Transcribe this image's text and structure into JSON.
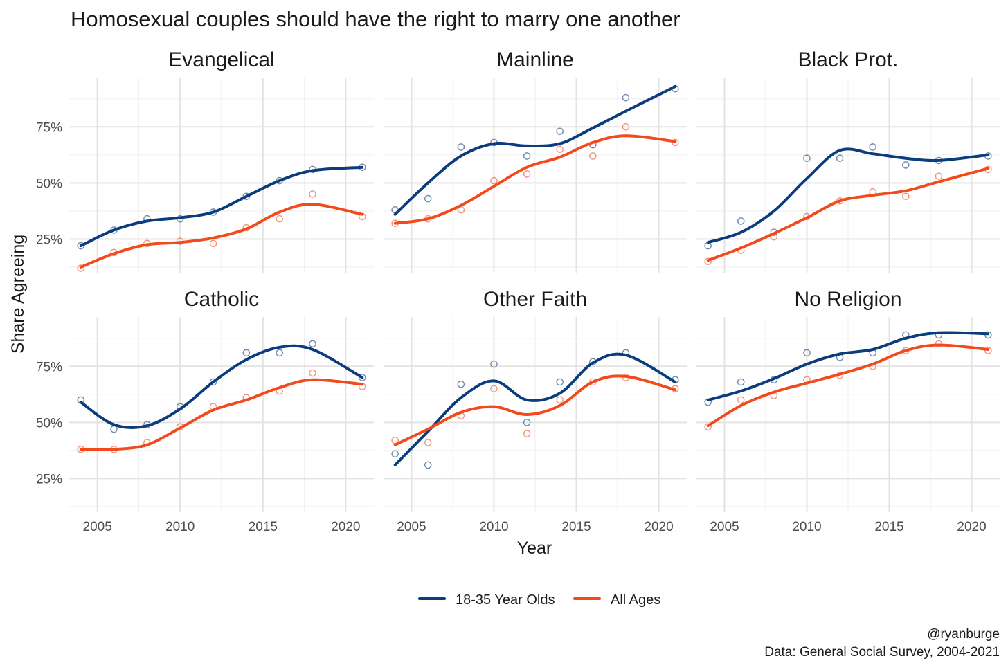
{
  "colors": {
    "young": "#0b3c7c",
    "all": "#f24a1c",
    "grid_major": "#e3e3e3",
    "grid_minor": "#f0f0f0"
  },
  "chart_data": {
    "type": "line",
    "title": "Homosexual couples should have the right to marry one another",
    "xlabel": "Year",
    "ylabel": "Share Agreeing",
    "x_ticks": [
      "2005",
      "2010",
      "2015",
      "2020"
    ],
    "y_ticks": [
      "25%",
      "50%",
      "75%"
    ],
    "xlim": [
      2003.3,
      2021.7
    ],
    "ylim": [
      0.1,
      0.97
    ],
    "legend_position": "bottom",
    "series_names": [
      "18-35 Year Olds",
      "All Ages"
    ],
    "years": [
      2004,
      2006,
      2008,
      2010,
      2012,
      2014,
      2016,
      2018,
      2021
    ],
    "panels": [
      {
        "name": "Evangelical",
        "series": [
          {
            "name": "18-35 Year Olds",
            "points": [
              0.22,
              0.29,
              0.34,
              0.34,
              0.37,
              0.44,
              0.51,
              0.56,
              0.57
            ],
            "trend": [
              0.22,
              0.29,
              0.33,
              0.345,
              0.37,
              0.44,
              0.51,
              0.555,
              0.57
            ]
          },
          {
            "name": "All Ages",
            "points": [
              0.12,
              0.19,
              0.23,
              0.24,
              0.23,
              0.3,
              0.34,
              0.45,
              0.35
            ],
            "trend": [
              0.125,
              0.185,
              0.225,
              0.235,
              0.255,
              0.295,
              0.37,
              0.405,
              0.36
            ]
          }
        ]
      },
      {
        "name": "Mainline",
        "series": [
          {
            "name": "18-35 Year Olds",
            "points": [
              0.38,
              0.43,
              0.66,
              0.68,
              0.62,
              0.73,
              0.67,
              0.88,
              0.92
            ],
            "trend": [
              0.36,
              0.5,
              0.62,
              0.675,
              0.665,
              0.675,
              0.745,
              0.82,
              0.93
            ]
          },
          {
            "name": "All Ages",
            "points": [
              0.32,
              0.34,
              0.38,
              0.51,
              0.54,
              0.65,
              0.62,
              0.75,
              0.68
            ],
            "trend": [
              0.32,
              0.34,
              0.4,
              0.485,
              0.57,
              0.615,
              0.68,
              0.71,
              0.685
            ]
          }
        ]
      },
      {
        "name": "Black Prot.",
        "series": [
          {
            "name": "18-35 Year Olds",
            "points": [
              0.22,
              0.33,
              0.28,
              0.61,
              0.61,
              0.66,
              0.58,
              0.6,
              0.62
            ],
            "trend": [
              0.235,
              0.28,
              0.375,
              0.52,
              0.645,
              0.63,
              0.61,
              0.6,
              0.625
            ]
          },
          {
            "name": "All Ages",
            "points": [
              0.15,
              0.2,
              0.26,
              0.35,
              0.42,
              0.46,
              0.44,
              0.53,
              0.56
            ],
            "trend": [
              0.155,
              0.21,
              0.275,
              0.345,
              0.42,
              0.445,
              0.465,
              0.505,
              0.565
            ]
          }
        ]
      },
      {
        "name": "Catholic",
        "series": [
          {
            "name": "18-35 Year Olds",
            "points": [
              0.6,
              0.47,
              0.49,
              0.57,
              0.68,
              0.81,
              0.81,
              0.85,
              0.7
            ],
            "trend": [
              0.59,
              0.49,
              0.485,
              0.56,
              0.68,
              0.78,
              0.835,
              0.825,
              0.7
            ]
          },
          {
            "name": "All Ages",
            "points": [
              0.38,
              0.38,
              0.41,
              0.48,
              0.57,
              0.61,
              0.64,
              0.72,
              0.66
            ],
            "trend": [
              0.38,
              0.38,
              0.4,
              0.475,
              0.555,
              0.6,
              0.655,
              0.69,
              0.67
            ]
          }
        ]
      },
      {
        "name": "Other Faith",
        "series": [
          {
            "name": "18-35 Year Olds",
            "points": [
              0.36,
              0.31,
              0.67,
              0.76,
              0.5,
              0.68,
              0.77,
              0.81,
              0.69
            ],
            "trend": [
              0.31,
              0.46,
              0.61,
              0.685,
              0.6,
              0.63,
              0.765,
              0.8,
              0.68
            ]
          },
          {
            "name": "All Ages",
            "points": [
              0.42,
              0.41,
              0.53,
              0.65,
              0.45,
              0.6,
              0.68,
              0.7,
              0.65
            ],
            "trend": [
              0.4,
              0.47,
              0.545,
              0.57,
              0.535,
              0.575,
              0.68,
              0.705,
              0.645
            ]
          }
        ]
      },
      {
        "name": "No Religion",
        "series": [
          {
            "name": "18-35 Year Olds",
            "points": [
              0.59,
              0.68,
              0.69,
              0.81,
              0.79,
              0.81,
              0.89,
              0.89,
              0.89
            ],
            "trend": [
              0.6,
              0.64,
              0.695,
              0.76,
              0.805,
              0.825,
              0.875,
              0.9,
              0.895
            ]
          },
          {
            "name": "All Ages",
            "points": [
              0.48,
              0.6,
              0.62,
              0.69,
              0.71,
              0.75,
              0.82,
              0.85,
              0.82
            ],
            "trend": [
              0.485,
              0.575,
              0.635,
              0.675,
              0.715,
              0.76,
              0.82,
              0.845,
              0.825
            ]
          }
        ]
      }
    ]
  },
  "caption": {
    "line1": "@ryanburge",
    "line2": "Data: General Social Survey, 2004-2021"
  }
}
